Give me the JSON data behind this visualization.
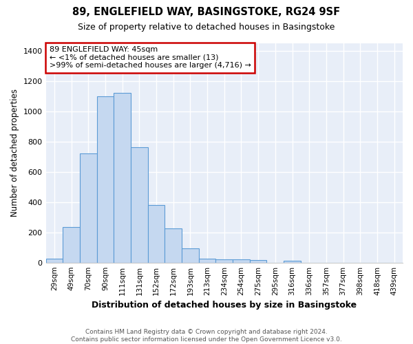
{
  "title1": "89, ENGLEFIELD WAY, BASINGSTOKE, RG24 9SF",
  "title2": "Size of property relative to detached houses in Basingstoke",
  "xlabel": "Distribution of detached houses by size in Basingstoke",
  "ylabel": "Number of detached properties",
  "footnote": "Contains HM Land Registry data © Crown copyright and database right 2024.\nContains public sector information licensed under the Open Government Licence v3.0.",
  "categories": [
    "29sqm",
    "49sqm",
    "70sqm",
    "90sqm",
    "111sqm",
    "131sqm",
    "152sqm",
    "172sqm",
    "193sqm",
    "213sqm",
    "234sqm",
    "254sqm",
    "275sqm",
    "295sqm",
    "316sqm",
    "336sqm",
    "357sqm",
    "377sqm",
    "398sqm",
    "418sqm",
    "439sqm"
  ],
  "values": [
    27,
    237,
    722,
    1100,
    1120,
    760,
    378,
    224,
    93,
    28,
    22,
    23,
    17,
    0,
    13,
    0,
    0,
    0,
    0,
    0,
    0
  ],
  "bar_color": "#c5d8f0",
  "bar_edge_color": "#5b9bd5",
  "bg_color": "#ffffff",
  "plot_bg_color": "#e8eef8",
  "grid_color": "#ffffff",
  "annotation_box_text": "89 ENGLEFIELD WAY: 45sqm\n← <1% of detached houses are smaller (13)\n>99% of semi-detached houses are larger (4,716) →",
  "annotation_box_color": "#ffffff",
  "annotation_box_edge_color": "#cc0000",
  "ylim": [
    0,
    1450
  ],
  "yticks": [
    0,
    200,
    400,
    600,
    800,
    1000,
    1200,
    1400
  ]
}
